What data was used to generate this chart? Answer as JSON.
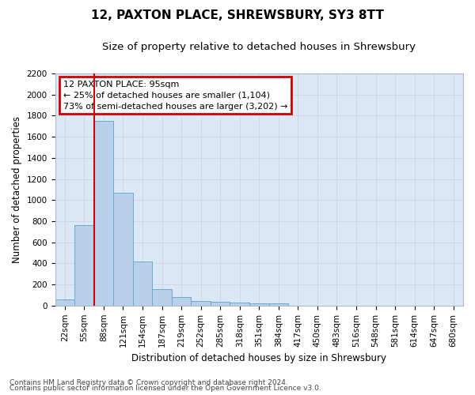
{
  "title": "12, PAXTON PLACE, SHREWSBURY, SY3 8TT",
  "subtitle": "Size of property relative to detached houses in Shrewsbury",
  "xlabel": "Distribution of detached houses by size in Shrewsbury",
  "ylabel": "Number of detached properties",
  "footnote1": "Contains HM Land Registry data © Crown copyright and database right 2024.",
  "footnote2": "Contains public sector information licensed under the Open Government Licence v3.0.",
  "bar_labels": [
    "22sqm",
    "55sqm",
    "88sqm",
    "121sqm",
    "154sqm",
    "187sqm",
    "219sqm",
    "252sqm",
    "285sqm",
    "318sqm",
    "351sqm",
    "384sqm",
    "417sqm",
    "450sqm",
    "483sqm",
    "516sqm",
    "548sqm",
    "581sqm",
    "614sqm",
    "647sqm",
    "680sqm"
  ],
  "bar_values": [
    55,
    760,
    1750,
    1070,
    420,
    155,
    80,
    45,
    35,
    28,
    18,
    18,
    0,
    0,
    0,
    0,
    0,
    0,
    0,
    0,
    0
  ],
  "bar_color": "#b8d0ea",
  "bar_edge_color": "#6aaad4",
  "red_line_index": 2,
  "red_line_color": "#cc0000",
  "annotation_line1": "12 PAXTON PLACE: 95sqm",
  "annotation_line2": "← 25% of detached houses are smaller (1,104)",
  "annotation_line3": "73% of semi-detached houses are larger (3,202) →",
  "annotation_box_color": "#cc0000",
  "ylim": [
    0,
    2200
  ],
  "yticks": [
    0,
    200,
    400,
    600,
    800,
    1000,
    1200,
    1400,
    1600,
    1800,
    2000,
    2200
  ],
  "grid_color": "#d0d8e8",
  "bg_color": "#dce8f5",
  "title_fontsize": 11,
  "subtitle_fontsize": 9.5,
  "axis_label_fontsize": 8.5,
  "tick_fontsize": 7.5,
  "annotation_fontsize": 8,
  "footnote_fontsize": 6.5
}
